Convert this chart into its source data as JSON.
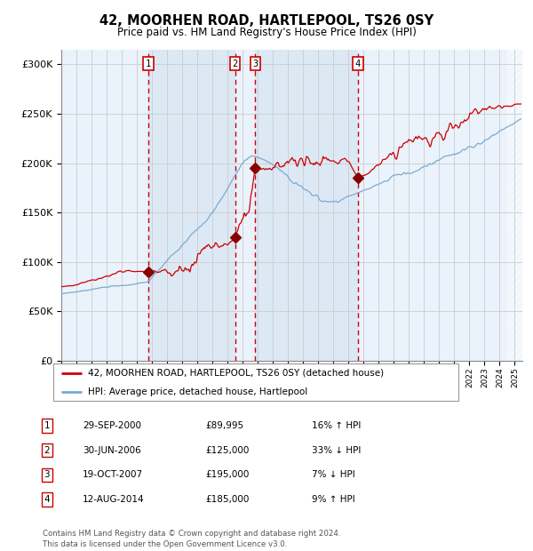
{
  "title": "42, MOORHEN ROAD, HARTLEPOOL, TS26 0SY",
  "subtitle": "Price paid vs. HM Land Registry's House Price Index (HPI)",
  "property_label": "42, MOORHEN ROAD, HARTLEPOOL, TS26 0SY (detached house)",
  "hpi_label": "HPI: Average price, detached house, Hartlepool",
  "transactions": [
    {
      "num": 1,
      "date": "29-SEP-2000",
      "price": 89995,
      "pct": "16%",
      "dir": "↑",
      "vs": "HPI",
      "year": 2000.75
    },
    {
      "num": 2,
      "date": "30-JUN-2006",
      "price": 125000,
      "pct": "33%",
      "dir": "↓",
      "vs": "HPI",
      "year": 2006.5
    },
    {
      "num": 3,
      "date": "19-OCT-2007",
      "price": 195000,
      "pct": "7%",
      "dir": "↓",
      "vs": "HPI",
      "year": 2007.83
    },
    {
      "num": 4,
      "date": "12-AUG-2014",
      "price": 185000,
      "pct": "9%",
      "dir": "↑",
      "vs": "HPI",
      "year": 2014.62
    }
  ],
  "ylabel_ticks": [
    "£0",
    "£50K",
    "£100K",
    "£150K",
    "£200K",
    "£250K",
    "£300K"
  ],
  "ytick_values": [
    0,
    50000,
    100000,
    150000,
    200000,
    250000,
    300000
  ],
  "ylim": [
    0,
    315000
  ],
  "xlim_start": 1995.0,
  "xlim_end": 2025.5,
  "background_color": "#ffffff",
  "plot_bg_color": "#dce9f5",
  "plot_bg_light": "#eaf2fb",
  "hatch_color": "#aabbcc",
  "property_line_color": "#cc0000",
  "hpi_line_color": "#7aaad0",
  "vline_color": "#cc0000",
  "marker_color": "#880000",
  "box_edge_color": "#cc0000",
  "footer_text": "Contains HM Land Registry data © Crown copyright and database right 2024.\nThis data is licensed under the Open Government Licence v3.0.",
  "grid_color": "#cccccc"
}
